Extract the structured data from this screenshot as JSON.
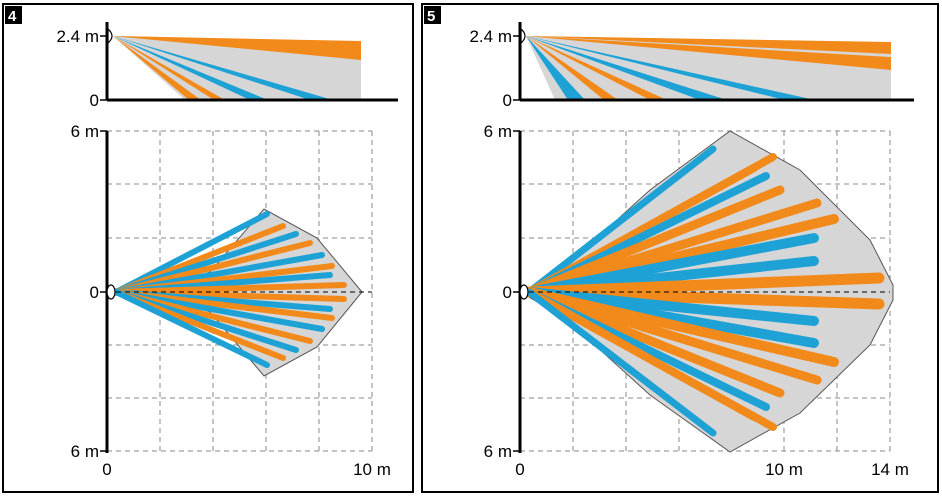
{
  "colors": {
    "orange": "#f28a1b",
    "blue": "#1ea2d6",
    "coverage": "#d6d6d6",
    "frame": "#000000",
    "grid": "#8a8a8a"
  },
  "panels": [
    {
      "number": "4",
      "side_labels": {
        "height": "2.4 m",
        "zero": "0"
      },
      "top_labels": {
        "pos": "6 m",
        "zero": "0",
        "neg": "6 m"
      },
      "x_labels": {
        "origin": "0",
        "range": "10 m"
      }
    },
    {
      "number": "5",
      "side_labels": {
        "height": "2.4 m",
        "zero": "0"
      },
      "top_labels": {
        "pos": "6 m",
        "zero": "0",
        "neg": "6 m"
      },
      "x_labels": {
        "origin": "0",
        "mid": "10 m",
        "range": "14 m"
      }
    }
  ]
}
